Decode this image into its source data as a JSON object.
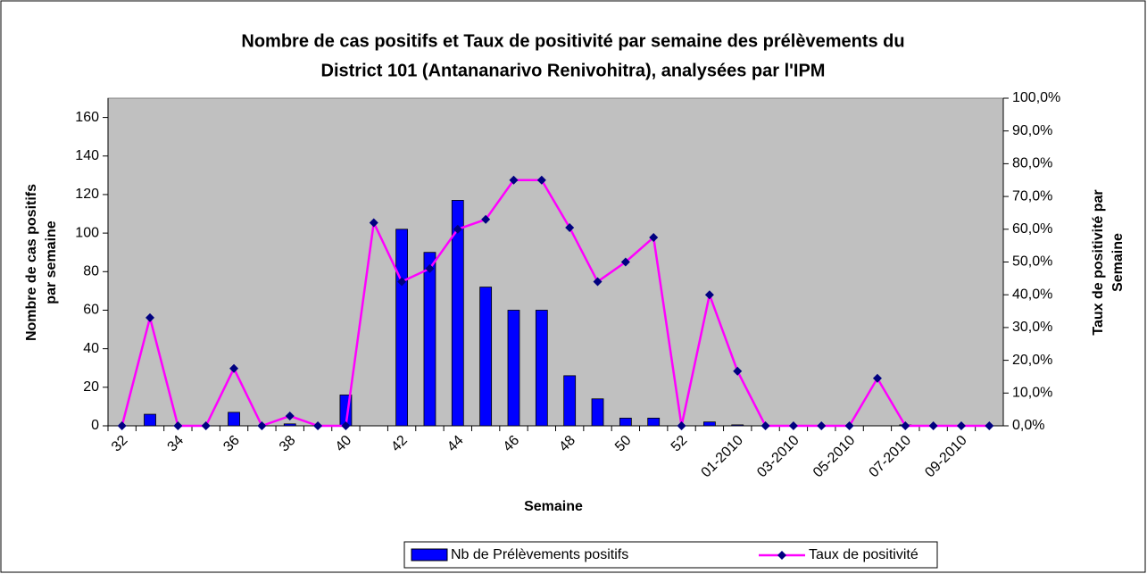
{
  "chart_data": {
    "type": "bar-line",
    "title": [
      "Nombre de cas positifs et Taux de positivité par semaine des prélèvements du",
      "District 101 (Antananarivo Renivohitra), analysées par l'IPM"
    ],
    "xlabel": "Semaine",
    "ylabel": [
      "Nombre de cas positifs",
      "par semaine"
    ],
    "y2label": [
      "Taux de positivité par",
      "Semaine"
    ],
    "categories": [
      "32",
      null,
      "34",
      null,
      "36",
      null,
      "38",
      null,
      "40",
      null,
      "42",
      null,
      "44",
      null,
      "46",
      null,
      "48",
      null,
      "50",
      null,
      "52",
      null,
      "01-2010",
      null,
      "03-2010",
      null,
      "05-2010",
      null,
      "07-2010",
      null,
      "09-2010",
      null
    ],
    "series": [
      {
        "name": "Nb de Prélèvements positifs",
        "type": "bar",
        "color": "#0000ff",
        "axis": "y",
        "values": [
          0,
          6,
          0,
          0,
          7,
          0,
          1,
          0,
          16,
          0,
          102,
          90,
          117,
          72,
          60,
          60,
          26,
          14,
          4,
          4,
          0,
          2,
          0.5,
          0,
          0,
          0,
          0,
          0,
          0.5,
          0,
          0,
          0
        ]
      },
      {
        "name": "Taux de positivité",
        "type": "line",
        "color": "#ff00ff",
        "marker_color": "#000080",
        "axis": "y2",
        "values": [
          0,
          33,
          0,
          0,
          17.5,
          0,
          3,
          0,
          0,
          62,
          44,
          48,
          60,
          63,
          75,
          75,
          60.5,
          44,
          50,
          57.5,
          0,
          40,
          16.7,
          0,
          0,
          0,
          0,
          14.5,
          0,
          0,
          0,
          0
        ]
      }
    ],
    "ylim": [
      0,
      170
    ],
    "yticks": [
      0,
      20,
      40,
      60,
      80,
      100,
      120,
      140,
      160
    ],
    "y2lim": [
      0,
      100
    ],
    "y2ticks": [
      {
        "value": 0,
        "label": "0,0%"
      },
      {
        "value": 10,
        "label": "10,0%"
      },
      {
        "value": 20,
        "label": "20,0%"
      },
      {
        "value": 30,
        "label": "30,0%"
      },
      {
        "value": 40,
        "label": "40,0%"
      },
      {
        "value": 50,
        "label": "50,0%"
      },
      {
        "value": 60,
        "label": "60,0%"
      },
      {
        "value": 70,
        "label": "70,0%"
      },
      {
        "value": 80,
        "label": "80,0%"
      },
      {
        "value": 90,
        "label": "90,0%"
      },
      {
        "value": 100,
        "label": "100,0%"
      }
    ],
    "grid": false,
    "plot_background": "#c0c0c0",
    "legend": "bottom"
  }
}
